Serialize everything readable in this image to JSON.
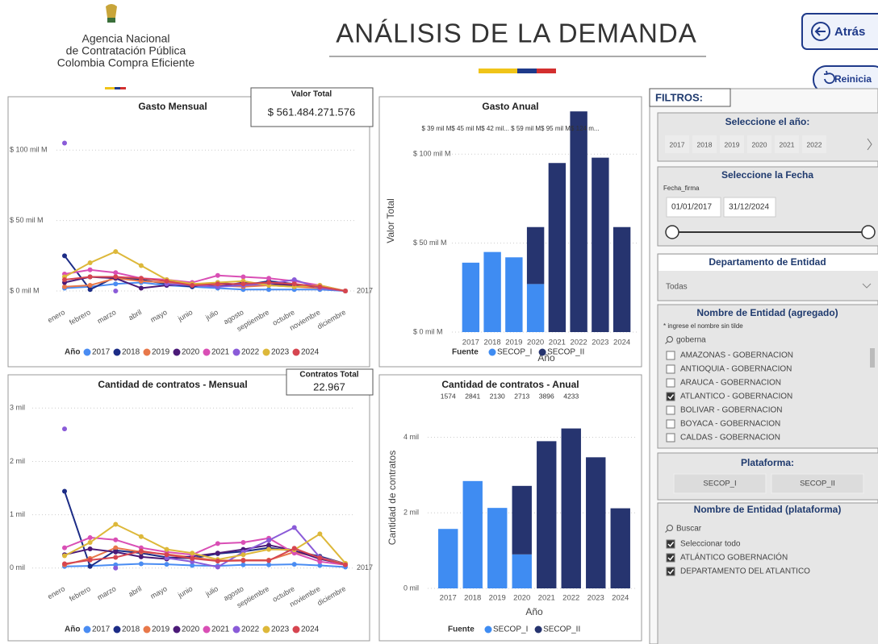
{
  "header": {
    "agency": [
      "Agencia Nacional",
      "de Contratación Pública",
      "Colombia Compra Eficiente"
    ],
    "title": "ANÁLISIS DE LA DEMANDA",
    "back": "Atrás",
    "reset": "Reinicia"
  },
  "cards": [
    {
      "label": "Valor Total",
      "value": "$ 561.484.271.576"
    },
    {
      "label": "Contratos Total",
      "value": "22.967"
    }
  ],
  "chart_data": [
    {
      "type": "line",
      "title": "Gasto Mensual",
      "categories": [
        "enero",
        "febrero",
        "marzo",
        "abril",
        "mayo",
        "junio",
        "julio",
        "agosto",
        "septiembre",
        "octubre",
        "noviembre",
        "diciembre"
      ],
      "ylim": [
        -8,
        115
      ],
      "yticks": [
        {
          "value": 0,
          "label": "$ 0 mil M"
        },
        {
          "value": 50,
          "label": "$ 50 mil M"
        },
        {
          "value": 100,
          "label": "$ 100 mil M"
        }
      ],
      "legend_title": "Año",
      "end_label": "2017",
      "series": [
        {
          "name": "2017",
          "color": "#4a8cf2",
          "values": [
            2,
            3,
            5,
            6,
            4,
            3,
            2,
            1,
            1,
            1,
            1,
            0
          ]
        },
        {
          "name": "2018",
          "color": "#1c2c86",
          "values": [
            25,
            1,
            10,
            8,
            5,
            3,
            6,
            4,
            7,
            5,
            2,
            0
          ]
        },
        {
          "name": "2019",
          "color": "#e8784a",
          "values": [
            3,
            4,
            9,
            7,
            6,
            5,
            4,
            3,
            4,
            3,
            2,
            0
          ]
        },
        {
          "name": "2020",
          "color": "#4b1a78",
          "values": [
            6,
            10,
            9,
            2,
            4,
            5,
            3,
            6,
            5,
            4,
            3,
            0
          ]
        },
        {
          "name": "2021",
          "color": "#d94fb5",
          "values": [
            12,
            15,
            13,
            9,
            8,
            6,
            11,
            10,
            9,
            7,
            4,
            0
          ]
        },
        {
          "name": "2022",
          "color": "#8a5bd8",
          "values": [
            105,
            null,
            0,
            null,
            5,
            4,
            3,
            4,
            5,
            8,
            2,
            0
          ]
        },
        {
          "name": "2023",
          "color": "#ddb83a",
          "values": [
            10,
            20,
            28,
            18,
            8,
            5,
            6,
            7,
            4,
            3,
            4,
            0
          ]
        },
        {
          "name": "2024",
          "color": "#d64550",
          "values": [
            8,
            10,
            10,
            9,
            7,
            4,
            5,
            5,
            6,
            5,
            3,
            0
          ]
        }
      ]
    },
    {
      "type": "bar",
      "title": "Gasto Anual",
      "y_label": "Valor Total",
      "x_label": "Año",
      "legend_title": "Fuente",
      "totals_text": "$ 39 mil M$ 45 mil M$ 42 mil... $ 59 mil M$ 95 mil M$ 124 m...",
      "categories": [
        "2017",
        "2018",
        "2019",
        "2020",
        "2021",
        "2022",
        "2023",
        "2024"
      ],
      "ylim": [
        0,
        125
      ],
      "yticks": [
        {
          "value": 0,
          "label": "$ 0 mil M"
        },
        {
          "value": 50,
          "label": "$ 50 mil M"
        },
        {
          "value": 100,
          "label": "$ 100 mil M"
        }
      ],
      "series": [
        {
          "name": "SECOP_I",
          "color": "#3f8cf2",
          "values": [
            39,
            45,
            42,
            27,
            null,
            null,
            null,
            null
          ]
        },
        {
          "name": "SECOP_II",
          "color": "#26346f",
          "values": [
            null,
            null,
            null,
            32,
            95,
            124,
            98,
            59
          ]
        }
      ]
    },
    {
      "type": "line",
      "title": "Cantidad de contratos - Mensual",
      "categories": [
        "enero",
        "febrero",
        "marzo",
        "abril",
        "mayo",
        "junio",
        "julio",
        "agosto",
        "septiembre",
        "octubre",
        "noviembre",
        "diciembre"
      ],
      "ylim": [
        -200,
        3050
      ],
      "yticks": [
        {
          "value": 0,
          "label": "0 mil"
        },
        {
          "value": 1000,
          "label": "1 mil"
        },
        {
          "value": 2000,
          "label": "2 mil"
        },
        {
          "value": 3000,
          "label": "3 mil"
        }
      ],
      "legend_title": "Año",
      "end_label": "2017",
      "series": [
        {
          "name": "2017",
          "color": "#4a8cf2",
          "values": [
            30,
            40,
            60,
            80,
            70,
            50,
            40,
            60,
            60,
            70,
            50,
            20
          ]
        },
        {
          "name": "2018",
          "color": "#1c2c86",
          "values": [
            1440,
            30,
            330,
            280,
            200,
            180,
            270,
            310,
            380,
            320,
            220,
            80
          ]
        },
        {
          "name": "2019",
          "color": "#e8784a",
          "values": [
            60,
            180,
            380,
            300,
            260,
            200,
            140,
            150,
            150,
            300,
            200,
            80
          ]
        },
        {
          "name": "2020",
          "color": "#4b1a78",
          "values": [
            250,
            360,
            300,
            210,
            170,
            220,
            280,
            350,
            430,
            330,
            170,
            70
          ]
        },
        {
          "name": "2021",
          "color": "#d94fb5",
          "values": [
            380,
            570,
            530,
            380,
            300,
            250,
            460,
            480,
            560,
            280,
            120,
            60
          ]
        },
        {
          "name": "2022",
          "color": "#8a5bd8",
          "values": [
            2610,
            null,
            0,
            null,
            190,
            120,
            20,
            300,
            520,
            760,
            200,
            60
          ]
        },
        {
          "name": "2023",
          "color": "#ddb83a",
          "values": [
            230,
            480,
            820,
            590,
            350,
            280,
            160,
            250,
            350,
            340,
            640,
            90
          ]
        },
        {
          "name": "2024",
          "color": "#d64550",
          "values": [
            80,
            150,
            200,
            320,
            250,
            180,
            130,
            140,
            140,
            370,
            190,
            60
          ]
        }
      ]
    },
    {
      "type": "bar",
      "title": "Cantidad de contratos - Anual",
      "y_label": "Cantidad de contratos",
      "x_label": "Año",
      "legend_title": "Fuente",
      "totals": [
        1574,
        2841,
        2130,
        2713,
        3896,
        4233
      ],
      "categories": [
        "2017",
        "2018",
        "2019",
        "2020",
        "2021",
        "2022",
        "2023",
        "2024"
      ],
      "ylim": [
        0,
        4800
      ],
      "yticks": [
        {
          "value": 0,
          "label": "0 mil"
        },
        {
          "value": 2000,
          "label": "2 mil"
        },
        {
          "value": 4000,
          "label": "4 mil"
        }
      ],
      "series": [
        {
          "name": "SECOP_I",
          "color": "#3f8cf2",
          "values": [
            1574,
            2841,
            2130,
            900,
            null,
            null,
            null,
            null
          ]
        },
        {
          "name": "SECOP_II",
          "color": "#26346f",
          "values": [
            null,
            null,
            null,
            1813,
            3896,
            4233,
            3470,
            2120
          ]
        }
      ]
    }
  ],
  "filters": {
    "title": "FILTROS:",
    "year": {
      "title": "Seleccione el año:",
      "options": [
        "2017",
        "2018",
        "2019",
        "2020",
        "2021",
        "2022"
      ]
    },
    "date": {
      "title": "Seleccione la Fecha",
      "field": "Fecha_firma",
      "start": "01/01/2017",
      "end": "31/12/2024"
    },
    "department": {
      "title": "Departamento de Entidad",
      "selected": "Todas"
    },
    "entity": {
      "title": "Nombre de Entidad (agregado)",
      "hint": "* ingrese el nombre sin tilde",
      "search": "goberna",
      "items": [
        {
          "label": "AMAZONAS - GOBERNACION",
          "checked": false
        },
        {
          "label": "ANTIOQUIA - GOBERNACION",
          "checked": false
        },
        {
          "label": "ARAUCA - GOBERNACION",
          "checked": false
        },
        {
          "label": "ATLANTICO - GOBERNACION",
          "checked": true
        },
        {
          "label": "BOLIVAR - GOBERNACION",
          "checked": false
        },
        {
          "label": "BOYACA - GOBERNACION",
          "checked": false
        },
        {
          "label": "CALDAS - GOBERNACION",
          "checked": false
        }
      ]
    },
    "platform": {
      "title": "Plataforma:",
      "options": [
        "SECOP_I",
        "SECOP_II"
      ]
    },
    "entity_platform": {
      "title": "Nombre de Entidad (plataforma)",
      "search": "Buscar",
      "items": [
        {
          "label": "Seleccionar todo",
          "checked": true
        },
        {
          "label": "ATLÁNTICO GOBERNACIÓN",
          "checked": true
        },
        {
          "label": "DEPARTAMENTO DEL ATLANTICO",
          "checked": true
        }
      ]
    }
  }
}
